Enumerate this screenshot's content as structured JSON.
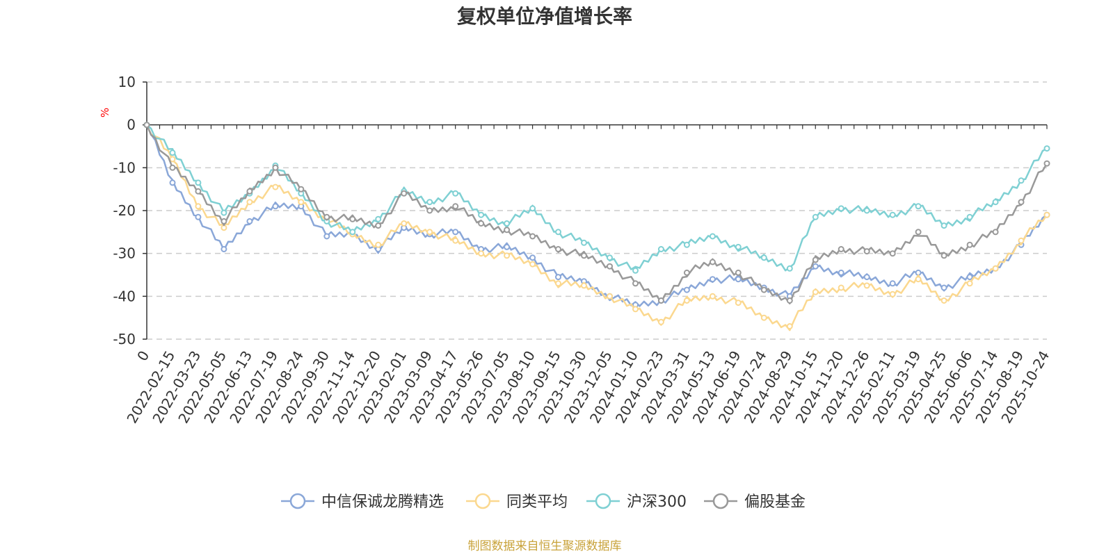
{
  "chart_data": {
    "type": "line",
    "title": "复权单位净值增长率",
    "ylabel": "%",
    "ylim": [
      -50,
      10
    ],
    "yticks": [
      10,
      0,
      -10,
      -20,
      -30,
      -40,
      -50
    ],
    "x_ticks": [
      "0",
      "2022-02-15",
      "2022-03-23",
      "2022-05-05",
      "2022-06-13",
      "2022-07-19",
      "2022-08-24",
      "2022-09-30",
      "2022-11-14",
      "2022-12-20",
      "2023-02-01",
      "2023-03-09",
      "2023-04-17",
      "2023-05-26",
      "2023-07-05",
      "2023-08-10",
      "2023-09-15",
      "2023-10-30",
      "2023-12-05",
      "2024-01-10",
      "2024-02-23",
      "2024-03-31",
      "2024-05-13",
      "2024-06-19",
      "2024-07-24",
      "2024-08-29",
      "2024-10-15",
      "2024-11-20",
      "2024-12-26",
      "2025-02-11",
      "2025-03-19",
      "2025-04-25",
      "2025-06-06",
      "2025-07-14",
      "2025-08-19",
      "2025-10-24"
    ],
    "x_index": [
      0,
      1,
      2,
      3,
      4,
      5,
      6,
      7,
      8,
      9,
      10,
      11,
      12,
      13,
      14,
      15,
      16,
      17,
      18,
      19,
      20,
      21,
      22,
      23,
      24,
      25,
      26,
      27,
      28,
      29,
      30,
      31,
      32,
      33,
      34,
      35
    ],
    "series": [
      {
        "name": "中信保诚龙腾精选",
        "color": "#8aa7d8",
        "values": [
          0,
          -13.5,
          -21.5,
          -29,
          -22.5,
          -19,
          -19,
          -26,
          -25.5,
          -29,
          -24,
          -25.5,
          -25,
          -29,
          -28.5,
          -31,
          -35.5,
          -36.5,
          -40,
          -42,
          -41,
          -38.5,
          -36,
          -36,
          -38,
          -40,
          -33,
          -34.5,
          -35.5,
          -37,
          -34.5,
          -38,
          -35.5,
          -33.5,
          -28,
          -21
        ]
      },
      {
        "name": "同类平均",
        "color": "#fbd88f",
        "values": [
          0,
          -8,
          -19,
          -24,
          -18,
          -14.5,
          -18,
          -22,
          -25.5,
          -28,
          -23,
          -25,
          -27,
          -30,
          -30.5,
          -32.5,
          -37,
          -37.5,
          -40,
          -43,
          -46,
          -41,
          -40,
          -41.5,
          -45,
          -47,
          -39,
          -38,
          -37.5,
          -39.5,
          -36,
          -41,
          -37,
          -33.5,
          -27,
          -21
        ]
      },
      {
        "name": "沪深300",
        "color": "#7fd0d3",
        "values": [
          0,
          -6.5,
          -13.5,
          -20.5,
          -16,
          -9.5,
          -16,
          -22.5,
          -25,
          -22,
          -15.5,
          -18,
          -16,
          -21,
          -23,
          -19.5,
          -25,
          -27.5,
          -31,
          -34,
          -29,
          -28,
          -26,
          -28.5,
          -31,
          -33.5,
          -21.5,
          -19.5,
          -20,
          -21,
          -19,
          -23.5,
          -21.5,
          -18,
          -13,
          -5.5
        ]
      },
      {
        "name": "偏股基金",
        "color": "#999999",
        "values": [
          0,
          -10,
          -15.5,
          -22.5,
          -15.5,
          -10,
          -15,
          -21.5,
          -22,
          -23.5,
          -16,
          -20,
          -19,
          -23,
          -24.5,
          -26,
          -29,
          -30.5,
          -33,
          -37,
          -41,
          -34.5,
          -32,
          -34.5,
          -38.5,
          -41,
          -31.5,
          -29,
          -29.5,
          -30,
          -25,
          -30.5,
          -28,
          -25,
          -18,
          -9
        ]
      }
    ],
    "legend_position": "bottom-center"
  },
  "footer": {
    "source_text": "制图数据来自恒生聚源数据库",
    "source_color": "#c9a33b"
  }
}
